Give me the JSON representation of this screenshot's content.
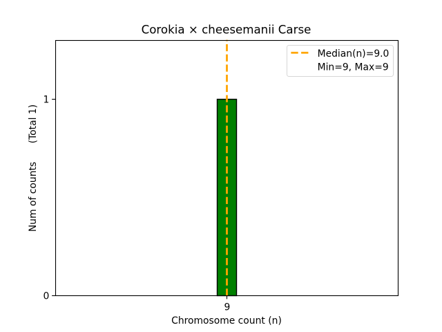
{
  "chart_data": {
    "type": "bar",
    "title": "Corokia × cheesemanii Carse",
    "xlabel": "Chromosome count (n)",
    "ylabel": "Num of counts      (Total 1)",
    "categories": [
      9
    ],
    "values": [
      1
    ],
    "total_counts": 1,
    "bar_style": {
      "color": "#008000",
      "edge_color": "#000000",
      "width": 0.8
    },
    "median_line": {
      "x": 9.0,
      "color": "#FFA500",
      "style": "dashed",
      "linewidth": 2
    },
    "xlim": [
      2,
      16
    ],
    "ylim": [
      0,
      1.3
    ],
    "xticks": [
      9
    ],
    "yticks": [
      0,
      1
    ],
    "grid": false,
    "background": "#ffffff",
    "legend": {
      "position": "upper right",
      "entries": [
        {
          "label": "Median(n)=9.0",
          "handle": "dashed-line",
          "handle_color": "#FFA500"
        },
        {
          "label": "Min=9, Max=9",
          "handle": "none"
        }
      ]
    }
  }
}
